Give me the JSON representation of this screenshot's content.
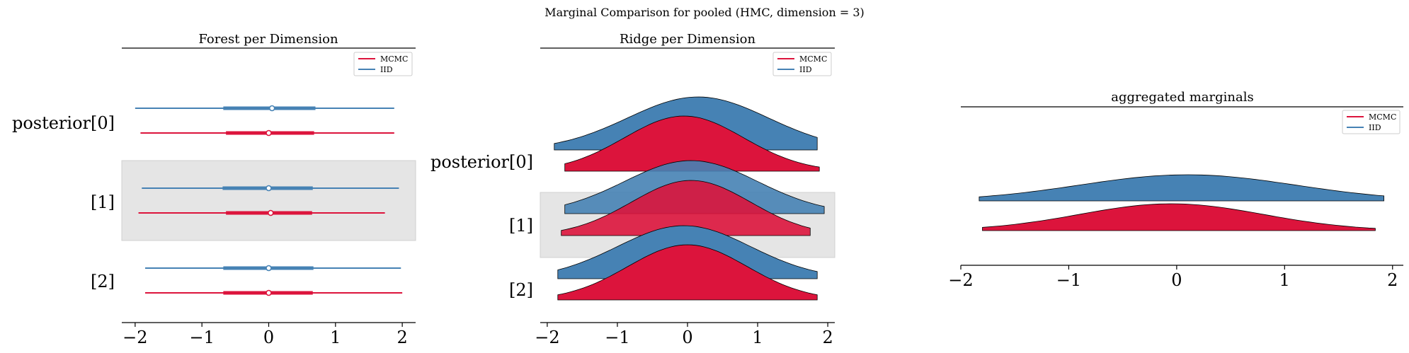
{
  "colors": {
    "mcmc": "#dc143c",
    "iid": "#4682b4",
    "band": "#e5e5e5"
  },
  "chart_data": [
    {
      "type": "forest",
      "title": "Forest per Dimension",
      "suptitle": "Marginal Comparison for pooled (HMC, dimension = 3)",
      "xlim": [
        -2.2,
        2.2
      ],
      "xticks": [
        -2,
        -1,
        0,
        1,
        2
      ],
      "xtick_labels": [
        "−2",
        "−1",
        "0",
        "1",
        "2"
      ],
      "categories": [
        "posterior[0]",
        "[1]",
        "[2]"
      ],
      "legend": {
        "placement": "top-right",
        "entries": [
          "MCMC",
          "IID"
        ]
      },
      "series": [
        {
          "name": "IID",
          "rows": [
            {
              "min": -2.0,
              "hdi_low": -0.68,
              "median": 0.05,
              "hdi_high": 0.7,
              "max": 1.88
            },
            {
              "min": -1.9,
              "hdi_low": -0.69,
              "median": 0.0,
              "hdi_high": 0.66,
              "max": 1.95
            },
            {
              "min": -1.85,
              "hdi_low": -0.68,
              "median": 0.0,
              "hdi_high": 0.67,
              "max": 1.98
            }
          ]
        },
        {
          "name": "MCMC",
          "rows": [
            {
              "min": -1.92,
              "hdi_low": -0.64,
              "median": 0.0,
              "hdi_high": 0.68,
              "max": 1.88
            },
            {
              "min": -1.95,
              "hdi_low": -0.64,
              "median": 0.03,
              "hdi_high": 0.65,
              "max": 1.74
            },
            {
              "min": -1.85,
              "hdi_low": -0.68,
              "median": 0.0,
              "hdi_high": 0.66,
              "max": 2.0
            }
          ]
        }
      ]
    },
    {
      "type": "ridge",
      "title": "Ridge per Dimension",
      "xlim": [
        -2.1,
        2.1
      ],
      "xticks": [
        -2,
        -1,
        0,
        1,
        2
      ],
      "xtick_labels": [
        "−2",
        "−1",
        "0",
        "1",
        "2"
      ],
      "categories": [
        "posterior[0]",
        "[1]",
        "[2]"
      ],
      "legend": {
        "placement": "top-right",
        "entries": [
          "MCMC",
          "IID"
        ]
      },
      "series": [
        {
          "name": "IID",
          "rows": [
            {
              "min": -1.9,
              "max": 1.85,
              "mean": 0.15,
              "sd": 1.0
            },
            {
              "min": -1.75,
              "max": 1.95,
              "mean": 0.05,
              "sd": 0.95
            },
            {
              "min": -1.85,
              "max": 1.85,
              "mean": -0.05,
              "sd": 0.95
            }
          ]
        },
        {
          "name": "MCMC",
          "rows": [
            {
              "min": -1.75,
              "max": 1.88,
              "mean": -0.05,
              "sd": 0.85
            },
            {
              "min": -1.8,
              "max": 1.75,
              "mean": 0.05,
              "sd": 0.85
            },
            {
              "min": -1.85,
              "max": 1.85,
              "mean": 0.0,
              "sd": 0.85
            }
          ]
        }
      ]
    },
    {
      "type": "ridge",
      "title": "aggregated marginals",
      "xlim": [
        -2.0,
        2.1
      ],
      "xticks": [
        -2,
        -1,
        0,
        1,
        2
      ],
      "xtick_labels": [
        "−2",
        "−1",
        "0",
        "1",
        "2"
      ],
      "categories": [
        ""
      ],
      "legend": {
        "placement": "top-right",
        "entries": [
          "MCMC",
          "IID"
        ]
      },
      "series": [
        {
          "name": "IID",
          "rows": [
            {
              "min": -1.83,
              "max": 1.92,
              "mean": 0.1,
              "sd": 1.0
            }
          ]
        },
        {
          "name": "MCMC",
          "rows": [
            {
              "min": -1.8,
              "max": 1.84,
              "mean": -0.05,
              "sd": 0.85
            }
          ]
        }
      ]
    }
  ]
}
